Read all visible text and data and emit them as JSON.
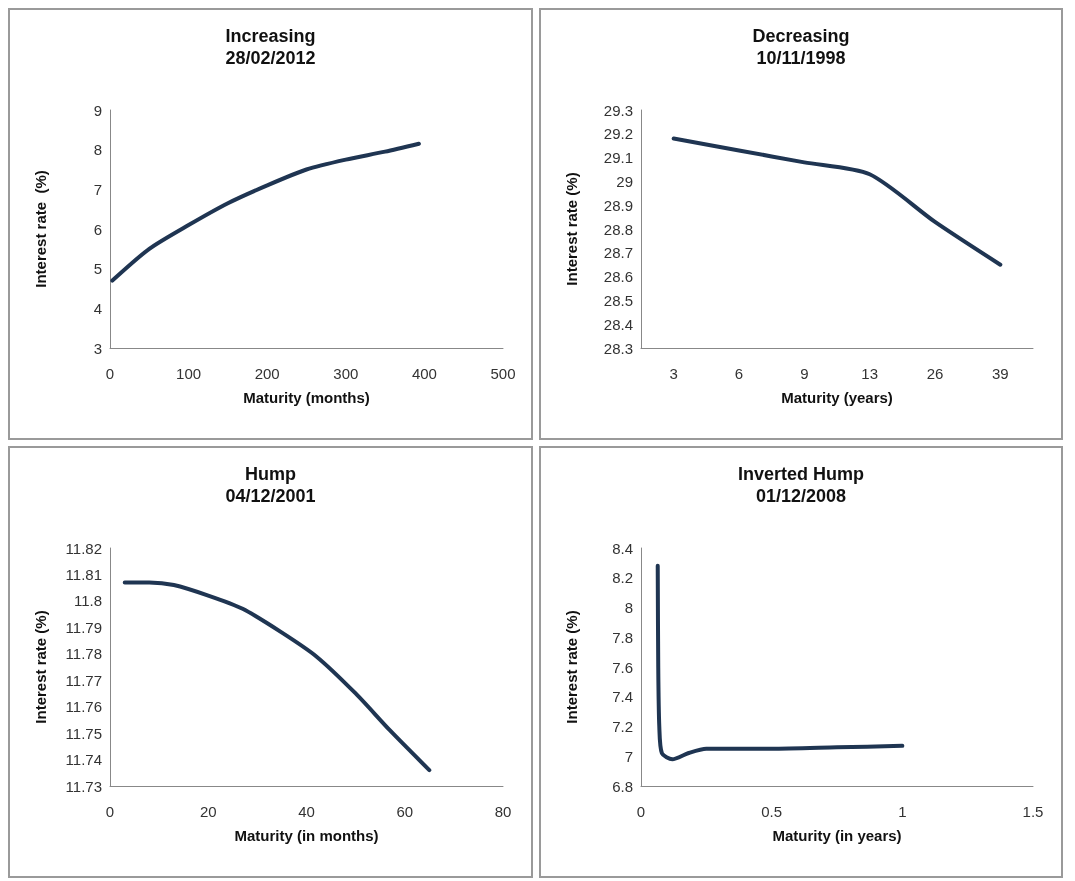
{
  "chart_data": [
    {
      "type": "line",
      "title": "Increasing",
      "subtitle": "28/02/2012",
      "xlabel": "Maturity (months)",
      "ylabel": "Interest rate  (%)",
      "x": [
        3,
        50,
        100,
        150,
        200,
        250,
        300,
        350,
        393
      ],
      "series": [
        {
          "color": "#1f3552",
          "values": [
            4.7,
            5.5,
            6.1,
            6.65,
            7.1,
            7.5,
            7.75,
            7.95,
            8.15
          ]
        }
      ],
      "xlim": [
        0,
        500
      ],
      "xticks": [
        0,
        100,
        200,
        300,
        400,
        500
      ],
      "ylim": [
        3,
        9
      ],
      "yticks": [
        3,
        4,
        5,
        6,
        7,
        8,
        9
      ],
      "grid": false,
      "marker": "none",
      "line_style": "solid"
    },
    {
      "type": "line",
      "title": "Decreasing",
      "subtitle": "10/11/1998",
      "xlabel": "Maturity (years)",
      "ylabel": "Interest rate (%)",
      "categories": [
        "3",
        "6",
        "9",
        "13",
        "26",
        "39"
      ],
      "series": [
        {
          "color": "#1f3552",
          "values": [
            29.18,
            29.13,
            29.08,
            29.03,
            28.83,
            28.65
          ]
        }
      ],
      "ylim": [
        28.3,
        29.3
      ],
      "yticks": [
        28.3,
        28.4,
        28.5,
        28.6,
        28.7,
        28.8,
        28.9,
        29,
        29.1,
        29.2,
        29.3
      ],
      "grid": false,
      "marker": "none",
      "line_style": "solid"
    },
    {
      "type": "line",
      "title": "Hump",
      "subtitle": "04/12/2001",
      "xlabel": "Maturity (in months)",
      "ylabel": "Interest rate (%)",
      "x": [
        3,
        8,
        13,
        20,
        27,
        35,
        42,
        50,
        57,
        65
      ],
      "series": [
        {
          "color": "#1f3552",
          "values": [
            11.807,
            11.807,
            11.806,
            11.802,
            11.797,
            11.788,
            11.779,
            11.765,
            11.751,
            11.736
          ]
        }
      ],
      "xlim": [
        0,
        80
      ],
      "xticks": [
        0,
        20,
        40,
        60,
        80
      ],
      "ylim": [
        11.73,
        11.82
      ],
      "yticks": [
        11.73,
        11.74,
        11.75,
        11.76,
        11.77,
        11.78,
        11.79,
        11.8,
        11.81,
        11.82
      ],
      "grid": false,
      "marker": "none",
      "line_style": "solid"
    },
    {
      "type": "line",
      "title": "Inverted Hump",
      "subtitle": "01/12/2008",
      "xlabel": "Maturity (in years)",
      "ylabel": "Interest rate (%)",
      "x": [
        0.064,
        0.066,
        0.07,
        0.08,
        0.12,
        0.18,
        0.25,
        0.5,
        0.75,
        1.0
      ],
      "series": [
        {
          "color": "#1f3552",
          "values": [
            8.28,
            7.6,
            7.2,
            7.02,
            6.98,
            7.02,
            7.05,
            7.05,
            7.06,
            7.07
          ]
        }
      ],
      "xlim": [
        0,
        1.5
      ],
      "xticks": [
        0,
        0.5,
        1,
        1.5
      ],
      "ylim": [
        6.8,
        8.4
      ],
      "yticks": [
        6.8,
        7,
        7.2,
        7.4,
        7.6,
        7.8,
        8,
        8.2,
        8.4
      ],
      "grid": false,
      "marker": "none",
      "line_style": "solid"
    }
  ]
}
